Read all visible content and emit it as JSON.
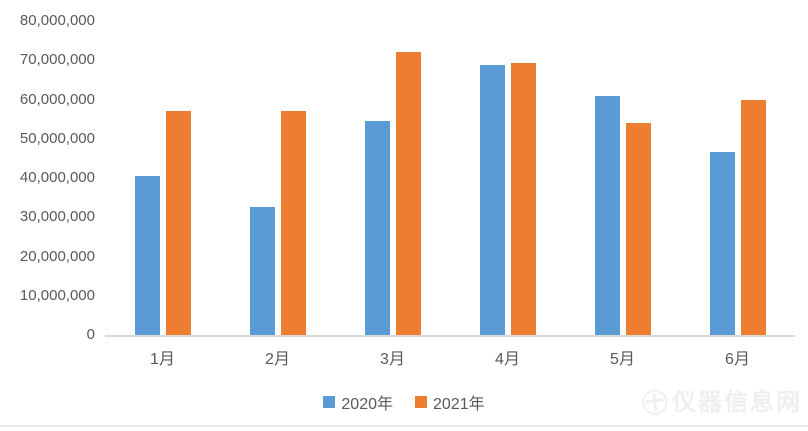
{
  "chart_data": {
    "type": "bar",
    "title": "",
    "xlabel": "",
    "ylabel": "",
    "categories": [
      "1月",
      "2月",
      "3月",
      "4月",
      "5月",
      "6月"
    ],
    "series": [
      {
        "name": "2020年",
        "color": "#5B9BD5",
        "values": [
          40600000,
          32700000,
          54400000,
          68800000,
          61000000,
          46600000
        ]
      },
      {
        "name": "2021年",
        "color": "#ED7D31",
        "values": [
          57000000,
          57100000,
          72000000,
          69200000,
          54100000,
          59800000
        ]
      }
    ],
    "ylim": [
      0,
      80000000
    ],
    "ytick_step": 10000000,
    "yticks": [
      "0",
      "10,000,000",
      "20,000,000",
      "30,000,000",
      "40,000,000",
      "50,000,000",
      "60,000,000",
      "70,000,000",
      "80,000,000"
    ],
    "grid": false,
    "legend_position": "bottom",
    "axis_color": "#d9d9d9",
    "label_color": "#595959"
  },
  "watermark": {
    "text": "仪器信息网",
    "logo": "㊉"
  }
}
